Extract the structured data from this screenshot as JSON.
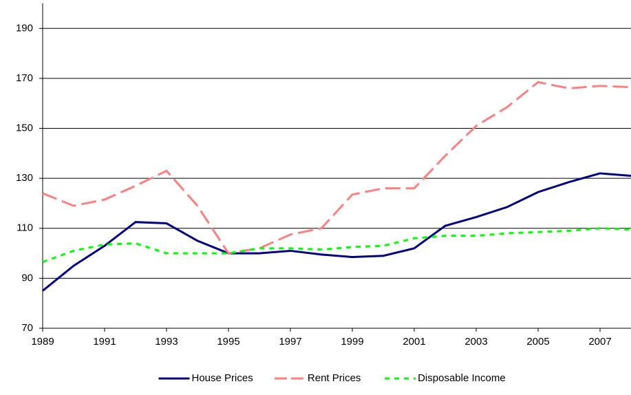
{
  "chart_data": {
    "type": "line",
    "x": [
      1989,
      1990,
      1991,
      1992,
      1993,
      1994,
      1995,
      1996,
      1997,
      1998,
      1999,
      2000,
      2001,
      2002,
      2003,
      2004,
      2005,
      2006,
      2007,
      2008
    ],
    "series": [
      {
        "name": "House Prices",
        "color": "#000080",
        "dash": "solid",
        "values": [
          85,
          95,
          103,
          112.5,
          112,
          105,
          100,
          100,
          101,
          99.5,
          98.5,
          99,
          102,
          111,
          114.5,
          118.5,
          124.5,
          128.5,
          132,
          131
        ]
      },
      {
        "name": "Rent Prices",
        "color": "#ff8080",
        "dash": "long",
        "values": [
          124,
          119,
          121.5,
          127,
          133,
          119,
          100,
          102,
          107.5,
          110,
          123.5,
          126,
          126,
          139,
          151,
          158.5,
          168.5,
          166,
          167,
          166.5
        ]
      },
      {
        "name": "Disposable Income",
        "color": "#00ff00",
        "dash": "short",
        "values": [
          96.5,
          101,
          103.5,
          104,
          100,
          100,
          100,
          102,
          102,
          101.5,
          102.5,
          103,
          106,
          107,
          107,
          108,
          108.5,
          109,
          110,
          109.5
        ]
      }
    ],
    "xlim": [
      1989,
      2008
    ],
    "xticks": [
      1989,
      1991,
      1993,
      1995,
      1997,
      1999,
      2001,
      2003,
      2005,
      2007
    ],
    "ylim": [
      70,
      200
    ],
    "yticks": [
      70,
      90,
      110,
      130,
      150,
      170,
      190
    ],
    "grid": true,
    "legend": "bottom"
  }
}
